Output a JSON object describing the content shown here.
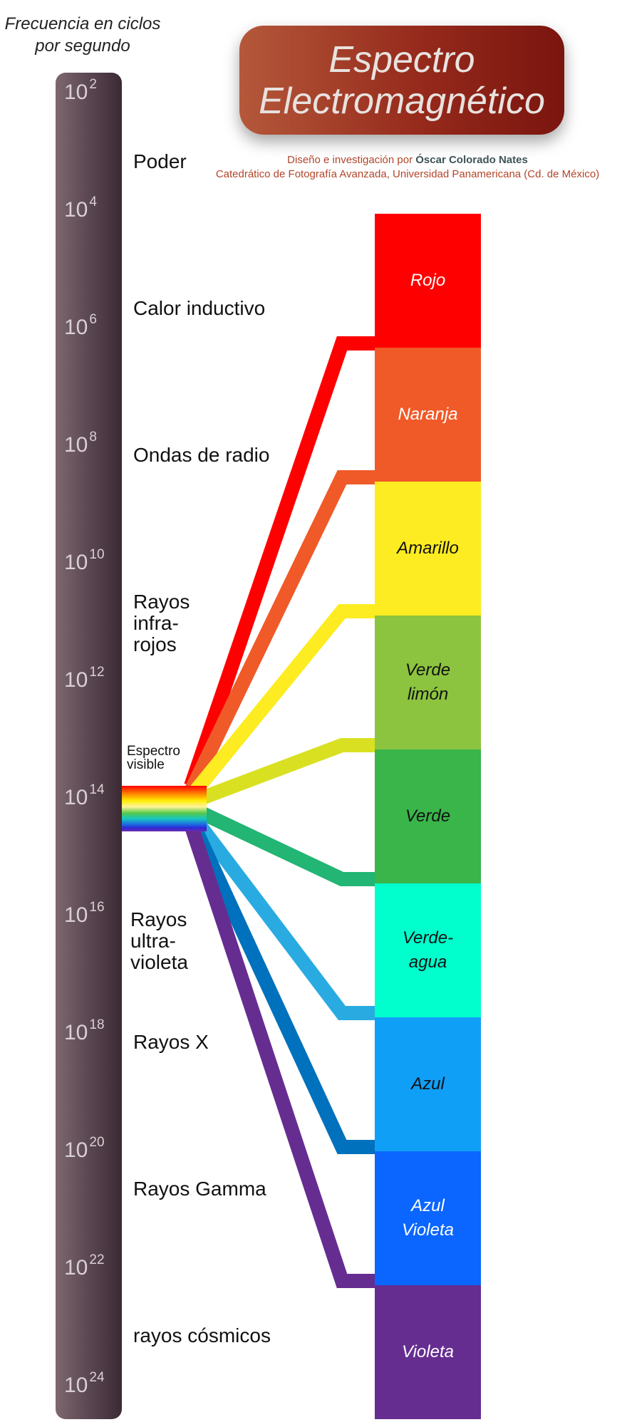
{
  "header": {
    "frequency_label": [
      "Frecuencia en ciclos",
      "por segundo"
    ],
    "title_lines": [
      "Espectro",
      "Electromagnético"
    ],
    "credit_prefix": "Diseño e investigación por ",
    "credit_author": "Óscar Colorado Nates",
    "credit_line2": "Catedrático de Fotografía Avanzada, Universidad Panamericana (Cd. de México)"
  },
  "frequency_ticks": [
    {
      "base": "10",
      "exp": "2"
    },
    {
      "base": "10",
      "exp": "4"
    },
    {
      "base": "10",
      "exp": "6"
    },
    {
      "base": "10",
      "exp": "8"
    },
    {
      "base": "10",
      "exp": "10"
    },
    {
      "base": "10",
      "exp": "12"
    },
    {
      "base": "10",
      "exp": "14"
    },
    {
      "base": "10",
      "exp": "16"
    },
    {
      "base": "10",
      "exp": "18"
    },
    {
      "base": "10",
      "exp": "20"
    },
    {
      "base": "10",
      "exp": "22"
    },
    {
      "base": "10",
      "exp": "24"
    }
  ],
  "bands": [
    {
      "lines": [
        "Poder"
      ]
    },
    {
      "lines": [
        "Calor inductivo"
      ]
    },
    {
      "lines": [
        "Ondas de radio"
      ]
    },
    {
      "lines": [
        "Rayos",
        "infra-",
        "rojos"
      ]
    },
    {
      "lines": [
        "Rayos",
        "ultra-",
        "violeta"
      ]
    },
    {
      "lines": [
        "Rayos X"
      ]
    },
    {
      "lines": [
        "Rayos Gamma"
      ]
    },
    {
      "lines": [
        "rayos cósmicos"
      ]
    }
  ],
  "visible_spectrum_label": [
    "Espectro",
    "visible"
  ],
  "visible_colors": [
    {
      "lines": [
        "Rojo"
      ],
      "color": "#ff0000",
      "text_color": "#ffffff",
      "line_color": "#ff0000"
    },
    {
      "lines": [
        "Naranja"
      ],
      "color": "#f05a28",
      "text_color": "#ffffff",
      "line_color": "#f05a28"
    },
    {
      "lines": [
        "Amarillo"
      ],
      "color": "#fcec21",
      "text_color": "#111111",
      "line_color": "#fcec21"
    },
    {
      "lines": [
        "Verde",
        "limón"
      ],
      "color": "#8cc43f",
      "text_color": "#111111",
      "line_color": "#d9e021"
    },
    {
      "lines": [
        "Verde"
      ],
      "color": "#39b54a",
      "text_color": "#111111",
      "line_color": "#22b573"
    },
    {
      "lines": [
        "Verde-",
        "agua"
      ],
      "color": "#00ffcc",
      "text_color": "#111111",
      "line_color": "#29abe2"
    },
    {
      "lines": [
        "Azul"
      ],
      "color": "#109ff7",
      "text_color": "#111111",
      "line_color": "#0071bc"
    },
    {
      "lines": [
        "Azul",
        "Violeta"
      ],
      "color": "#0a66ff",
      "text_color": "#ffffff",
      "line_color": "#662d91"
    },
    {
      "lines": [
        "Violeta"
      ],
      "color": "#662d91",
      "text_color": "#ffffff"
    }
  ]
}
